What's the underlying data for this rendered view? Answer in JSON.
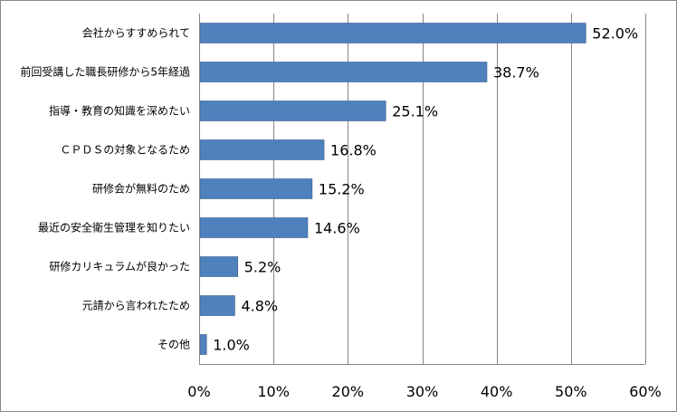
{
  "chart_data": {
    "type": "bar",
    "orientation": "horizontal",
    "categories": [
      "会社からすすめられて",
      "前回受講した職長研修から5年経過",
      "指導・教育の知識を深めたい",
      "ＣＰＤＳの対象となるため",
      "研修会が無料のため",
      "最近の安全衛生管理を知りたい",
      "研修カリキュラムが良かった",
      "元請から言われたため",
      "その他"
    ],
    "values": [
      52.0,
      38.7,
      25.1,
      16.8,
      15.2,
      14.6,
      5.2,
      4.8,
      1.0
    ],
    "value_labels": [
      "52.0%",
      "38.7%",
      "25.1%",
      "16.8%",
      "15.2%",
      "14.6%",
      "5.2%",
      "4.8%",
      "1.0%"
    ],
    "x_ticks": [
      0,
      10,
      20,
      30,
      40,
      50,
      60
    ],
    "x_tick_labels": [
      "0%",
      "10%",
      "20%",
      "30%",
      "40%",
      "50%",
      "60%"
    ],
    "xlim": [
      0,
      60
    ],
    "title": "",
    "xlabel": "",
    "ylabel": "",
    "grid": "vertical",
    "legend": "none",
    "bar_color": "#4F81BD",
    "bar_border_color": "#385D8A",
    "grid_color": "#868686"
  }
}
